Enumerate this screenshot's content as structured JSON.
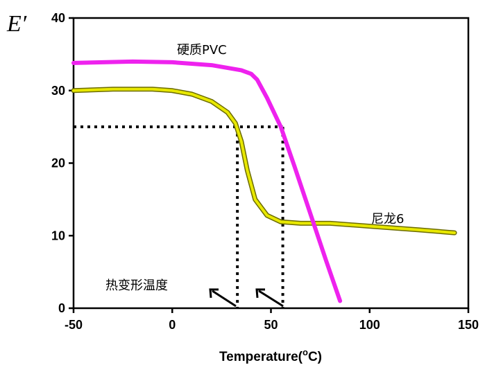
{
  "chart_data": {
    "type": "line",
    "title": "",
    "ylabel": "E′",
    "xlabel_main": "Temperature(",
    "xlabel_sup": "o",
    "xlabel_end": "C)",
    "xlim": [
      -50,
      150
    ],
    "ylim": [
      0,
      40
    ],
    "xticks": [
      -50,
      0,
      50,
      100,
      150
    ],
    "yticks": [
      0,
      10,
      20,
      30,
      40
    ],
    "grid": false,
    "series": [
      {
        "name": "硬质PVC",
        "color": "#ee22ee",
        "x": [
          -50,
          -20,
          0,
          20,
          35,
          40,
          43,
          48,
          55,
          62,
          70,
          78,
          85
        ],
        "y": [
          33.8,
          34,
          33.9,
          33.5,
          32.8,
          32.3,
          31.5,
          29,
          25,
          19.5,
          13,
          6.5,
          1
        ]
      },
      {
        "name": "尼龙6",
        "color": "#e8e800",
        "x": [
          -50,
          -30,
          -10,
          0,
          10,
          20,
          28,
          32,
          35,
          38,
          42,
          48,
          55,
          65,
          80,
          100,
          125,
          143
        ],
        "y": [
          30,
          30.2,
          30.2,
          30,
          29.5,
          28.5,
          27,
          25.5,
          23,
          19,
          15,
          12.8,
          11.9,
          11.7,
          11.7,
          11.3,
          10.8,
          10.4
        ]
      }
    ],
    "reference_level": 25,
    "reference_x": [
      33,
      56
    ],
    "annotations": {
      "pvc_label": "硬质PVC",
      "nylon_label": "尼龙6",
      "hdt_label": "热变形温度"
    }
  }
}
